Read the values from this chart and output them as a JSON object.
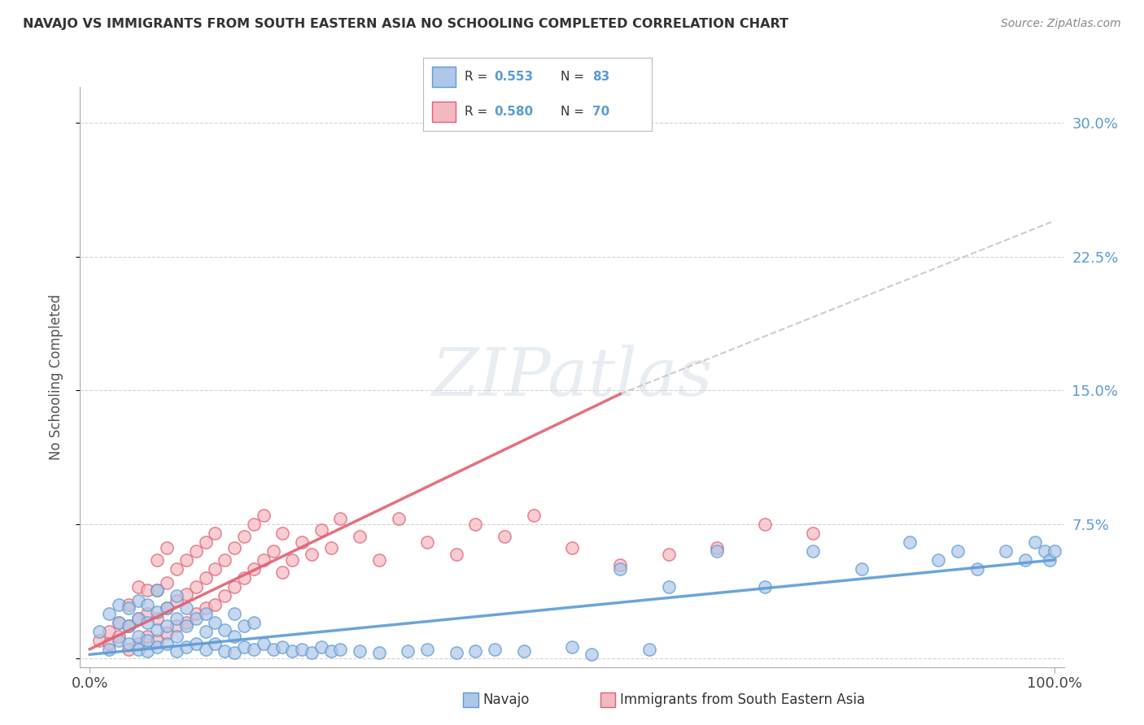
{
  "title": "NAVAJO VS IMMIGRANTS FROM SOUTH EASTERN ASIA NO SCHOOLING COMPLETED CORRELATION CHART",
  "source": "Source: ZipAtlas.com",
  "ylabel": "No Schooling Completed",
  "ytick_labels": [
    "",
    "7.5%",
    "15.0%",
    "22.5%",
    "30.0%"
  ],
  "ytick_values": [
    0.0,
    0.075,
    0.15,
    0.225,
    0.3
  ],
  "xlim": [
    -0.01,
    1.01
  ],
  "ylim": [
    -0.005,
    0.32
  ],
  "navajo_R": 0.553,
  "navajo_N": 83,
  "sea_R": 0.58,
  "sea_N": 70,
  "navajo_color": "#aec6e8",
  "navajo_edge_color": "#5b9bd5",
  "sea_color": "#f4b8c1",
  "sea_edge_color": "#e06070",
  "navajo_line_color": "#5b9bd5",
  "sea_line_color": "#e06070",
  "dashed_line_color": "#c0c0c0",
  "background_color": "#ffffff",
  "grid_color": "#c8c8c8",
  "watermark": "ZIPatlas",
  "legend_color": "#5b9bd5",
  "right_tick_color": "#5b9bd5",
  "navajo_x": [
    0.01,
    0.02,
    0.02,
    0.03,
    0.03,
    0.03,
    0.04,
    0.04,
    0.04,
    0.05,
    0.05,
    0.05,
    0.05,
    0.06,
    0.06,
    0.06,
    0.06,
    0.07,
    0.07,
    0.07,
    0.07,
    0.08,
    0.08,
    0.08,
    0.09,
    0.09,
    0.09,
    0.09,
    0.1,
    0.1,
    0.1,
    0.11,
    0.11,
    0.12,
    0.12,
    0.12,
    0.13,
    0.13,
    0.14,
    0.14,
    0.15,
    0.15,
    0.15,
    0.16,
    0.16,
    0.17,
    0.17,
    0.18,
    0.19,
    0.2,
    0.21,
    0.22,
    0.23,
    0.24,
    0.25,
    0.26,
    0.28,
    0.3,
    0.33,
    0.35,
    0.38,
    0.4,
    0.42,
    0.45,
    0.5,
    0.52,
    0.55,
    0.58,
    0.6,
    0.65,
    0.7,
    0.75,
    0.8,
    0.85,
    0.88,
    0.9,
    0.92,
    0.95,
    0.97,
    0.98,
    0.99,
    0.995,
    1.0
  ],
  "navajo_y": [
    0.015,
    0.005,
    0.025,
    0.01,
    0.02,
    0.03,
    0.008,
    0.018,
    0.028,
    0.005,
    0.012,
    0.022,
    0.032,
    0.004,
    0.01,
    0.02,
    0.03,
    0.006,
    0.016,
    0.026,
    0.038,
    0.008,
    0.018,
    0.028,
    0.004,
    0.012,
    0.022,
    0.035,
    0.006,
    0.018,
    0.028,
    0.008,
    0.022,
    0.005,
    0.015,
    0.025,
    0.008,
    0.02,
    0.004,
    0.016,
    0.003,
    0.012,
    0.025,
    0.006,
    0.018,
    0.005,
    0.02,
    0.008,
    0.005,
    0.006,
    0.004,
    0.005,
    0.003,
    0.006,
    0.004,
    0.005,
    0.004,
    0.003,
    0.004,
    0.005,
    0.003,
    0.004,
    0.005,
    0.004,
    0.006,
    0.002,
    0.05,
    0.005,
    0.04,
    0.06,
    0.04,
    0.06,
    0.05,
    0.065,
    0.055,
    0.06,
    0.05,
    0.06,
    0.055,
    0.065,
    0.06,
    0.055,
    0.06
  ],
  "sea_x": [
    0.01,
    0.02,
    0.02,
    0.03,
    0.03,
    0.04,
    0.04,
    0.04,
    0.05,
    0.05,
    0.05,
    0.06,
    0.06,
    0.06,
    0.07,
    0.07,
    0.07,
    0.07,
    0.08,
    0.08,
    0.08,
    0.08,
    0.09,
    0.09,
    0.09,
    0.1,
    0.1,
    0.1,
    0.11,
    0.11,
    0.11,
    0.12,
    0.12,
    0.12,
    0.13,
    0.13,
    0.13,
    0.14,
    0.14,
    0.15,
    0.15,
    0.16,
    0.16,
    0.17,
    0.17,
    0.18,
    0.18,
    0.19,
    0.2,
    0.2,
    0.21,
    0.22,
    0.23,
    0.24,
    0.25,
    0.26,
    0.28,
    0.3,
    0.32,
    0.35,
    0.38,
    0.4,
    0.43,
    0.46,
    0.5,
    0.55,
    0.6,
    0.65,
    0.7,
    0.75
  ],
  "sea_y": [
    0.01,
    0.008,
    0.015,
    0.012,
    0.02,
    0.005,
    0.018,
    0.03,
    0.008,
    0.022,
    0.04,
    0.012,
    0.025,
    0.038,
    0.01,
    0.022,
    0.038,
    0.055,
    0.014,
    0.028,
    0.042,
    0.062,
    0.018,
    0.032,
    0.05,
    0.02,
    0.036,
    0.055,
    0.025,
    0.04,
    0.06,
    0.028,
    0.045,
    0.065,
    0.03,
    0.05,
    0.07,
    0.035,
    0.055,
    0.04,
    0.062,
    0.045,
    0.068,
    0.05,
    0.075,
    0.055,
    0.08,
    0.06,
    0.048,
    0.07,
    0.055,
    0.065,
    0.058,
    0.072,
    0.062,
    0.078,
    0.068,
    0.055,
    0.078,
    0.065,
    0.058,
    0.075,
    0.068,
    0.08,
    0.062,
    0.052,
    0.058,
    0.062,
    0.075,
    0.07
  ],
  "sea_line_x_end": 0.55,
  "sea_line_start_y": 0.005,
  "sea_line_end_y": 0.148,
  "navajo_line_start_y": 0.002,
  "navajo_line_end_y": 0.055,
  "dashed_line_start_x": 0.55,
  "dashed_line_end_x": 1.0,
  "dashed_line_start_y": 0.148,
  "dashed_line_end_y": 0.245
}
